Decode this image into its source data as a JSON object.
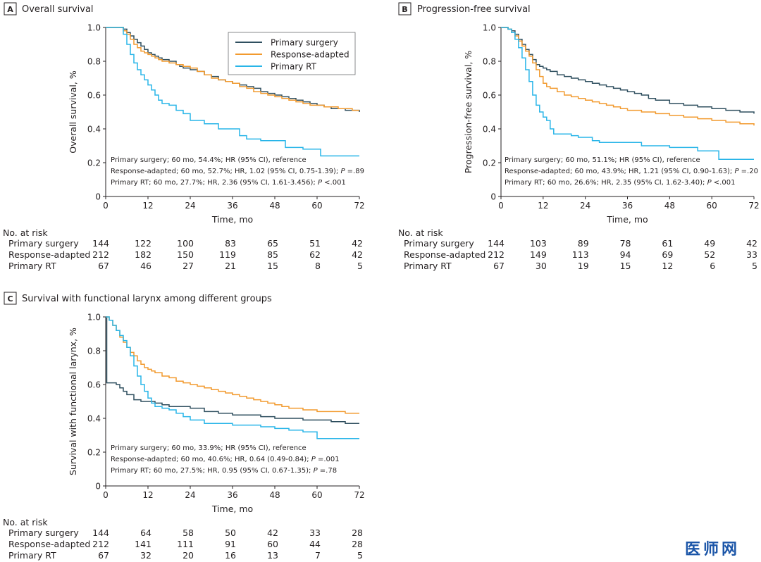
{
  "colors": {
    "primary_surgery": "#2f4f5f",
    "response_adapted": "#f29a2e",
    "primary_rt": "#29b5e8",
    "ink": "#231f20"
  },
  "watermark": "医师网",
  "chart_data": [
    {
      "panel": "A",
      "type": "line",
      "title": "Overall survival",
      "xlabel": "Time, mo",
      "ylabel": "Overall survival, %",
      "xlim": [
        0,
        72
      ],
      "ylim": [
        0,
        1.0
      ],
      "xticks": [
        "0",
        "12",
        "24",
        "36",
        "48",
        "60",
        "72"
      ],
      "yticks": [
        "0",
        "0.2",
        "0.4",
        "0.6",
        "0.8",
        "1.0"
      ],
      "legend_position": "top-right",
      "series": [
        {
          "name": "Primary surgery",
          "key": "primary_surgery",
          "x": [
            0,
            5,
            6,
            7,
            8,
            9,
            10,
            11,
            12,
            13,
            14,
            15,
            16,
            18,
            20,
            21,
            22,
            24,
            26,
            28,
            30,
            32,
            34,
            36,
            38,
            40,
            42,
            44,
            46,
            48,
            50,
            52,
            54,
            56,
            58,
            60,
            62,
            64,
            66,
            68,
            70,
            72
          ],
          "y": [
            1.0,
            0.99,
            0.97,
            0.95,
            0.93,
            0.91,
            0.89,
            0.87,
            0.85,
            0.84,
            0.83,
            0.82,
            0.81,
            0.8,
            0.78,
            0.77,
            0.76,
            0.75,
            0.74,
            0.72,
            0.71,
            0.69,
            0.68,
            0.67,
            0.66,
            0.65,
            0.64,
            0.62,
            0.61,
            0.6,
            0.59,
            0.58,
            0.57,
            0.56,
            0.55,
            0.54,
            0.53,
            0.52,
            0.52,
            0.51,
            0.51,
            0.5
          ]
        },
        {
          "name": "Response-adapted",
          "key": "response_adapted",
          "x": [
            0,
            5,
            6,
            7,
            8,
            9,
            10,
            11,
            12,
            13,
            14,
            15,
            16,
            18,
            20,
            22,
            24,
            26,
            28,
            30,
            32,
            34,
            36,
            38,
            40,
            42,
            44,
            46,
            48,
            50,
            52,
            54,
            56,
            58,
            60,
            62,
            64,
            66,
            68,
            70,
            72
          ],
          "y": [
            1.0,
            0.98,
            0.96,
            0.93,
            0.9,
            0.88,
            0.86,
            0.85,
            0.84,
            0.83,
            0.82,
            0.81,
            0.8,
            0.79,
            0.78,
            0.77,
            0.76,
            0.74,
            0.72,
            0.7,
            0.69,
            0.68,
            0.67,
            0.65,
            0.64,
            0.62,
            0.61,
            0.6,
            0.59,
            0.58,
            0.57,
            0.56,
            0.55,
            0.54,
            0.54,
            0.53,
            0.53,
            0.52,
            0.52,
            0.51,
            0.51
          ]
        },
        {
          "name": "Primary RT",
          "key": "primary_rt",
          "x": [
            0,
            5,
            6,
            7,
            8,
            9,
            10,
            11,
            12,
            13,
            14,
            15,
            16,
            18,
            20,
            22,
            24,
            28,
            32,
            36,
            38,
            40,
            44,
            46,
            51,
            56,
            61,
            72
          ],
          "y": [
            1.0,
            0.96,
            0.9,
            0.84,
            0.79,
            0.75,
            0.72,
            0.69,
            0.66,
            0.63,
            0.6,
            0.57,
            0.55,
            0.54,
            0.51,
            0.49,
            0.45,
            0.43,
            0.4,
            0.4,
            0.36,
            0.34,
            0.33,
            0.33,
            0.29,
            0.28,
            0.24,
            0.24
          ]
        }
      ],
      "annotations": [
        {
          "parts": [
            {
              "t": "Primary surgery; 60 mo, 54.4%; HR (95% CI), reference"
            }
          ]
        },
        {
          "parts": [
            {
              "t": "Response-adapted; 60 mo, 52.7%; HR, 1.02 (95% CI, 0.75-1.39); "
            },
            {
              "t": "P",
              "i": true
            },
            {
              "t": " =.89"
            }
          ]
        },
        {
          "parts": [
            {
              "t": "Primary RT; 60 mo, 27.7%; HR, 2.36 (95% CI, 1.61-3.456); "
            },
            {
              "t": "P",
              "i": true
            },
            {
              "t": " <.001"
            }
          ]
        }
      ],
      "risk_table": {
        "title": "No. at risk",
        "rows": [
          {
            "label": "Primary surgery",
            "values": [
              "144",
              "122",
              "100",
              "83",
              "65",
              "51",
              "42"
            ]
          },
          {
            "label": "Response-adapted",
            "values": [
              "212",
              "182",
              "150",
              "119",
              "85",
              "62",
              "42"
            ]
          },
          {
            "label": "Primary RT",
            "values": [
              "67",
              "46",
              "27",
              "21",
              "15",
              "8",
              "5"
            ]
          }
        ]
      }
    },
    {
      "panel": "B",
      "type": "line",
      "title": "Progression-free survival",
      "xlabel": "Time, mo",
      "ylabel": "Progression-free survival, %",
      "xlim": [
        0,
        72
      ],
      "ylim": [
        0,
        1.0
      ],
      "xticks": [
        "0",
        "12",
        "24",
        "36",
        "48",
        "60",
        "72"
      ],
      "yticks": [
        "0",
        "0.2",
        "0.4",
        "0.6",
        "0.8",
        "1.0"
      ],
      "legend_position": "none",
      "series": [
        {
          "name": "Primary surgery",
          "key": "primary_surgery",
          "x": [
            0,
            2,
            3,
            4,
            5,
            6,
            7,
            8,
            9,
            10,
            11,
            12,
            13,
            14,
            16,
            18,
            20,
            22,
            24,
            26,
            28,
            30,
            32,
            34,
            36,
            38,
            40,
            42,
            44,
            48,
            52,
            56,
            60,
            64,
            68,
            72
          ],
          "y": [
            1.0,
            0.99,
            0.98,
            0.96,
            0.93,
            0.9,
            0.87,
            0.84,
            0.81,
            0.78,
            0.77,
            0.76,
            0.75,
            0.74,
            0.72,
            0.71,
            0.7,
            0.69,
            0.68,
            0.67,
            0.66,
            0.65,
            0.64,
            0.63,
            0.62,
            0.61,
            0.6,
            0.58,
            0.57,
            0.55,
            0.54,
            0.53,
            0.52,
            0.51,
            0.5,
            0.49
          ]
        },
        {
          "name": "Response-adapted",
          "key": "response_adapted",
          "x": [
            0,
            2,
            3,
            4,
            5,
            6,
            7,
            8,
            9,
            10,
            11,
            12,
            13,
            14,
            16,
            18,
            20,
            22,
            24,
            26,
            28,
            30,
            32,
            34,
            36,
            40,
            44,
            48,
            52,
            56,
            60,
            64,
            68,
            72
          ],
          "y": [
            1.0,
            0.99,
            0.97,
            0.95,
            0.92,
            0.89,
            0.86,
            0.83,
            0.79,
            0.75,
            0.71,
            0.67,
            0.65,
            0.64,
            0.62,
            0.6,
            0.59,
            0.58,
            0.57,
            0.56,
            0.55,
            0.54,
            0.53,
            0.52,
            0.51,
            0.5,
            0.49,
            0.48,
            0.47,
            0.46,
            0.45,
            0.44,
            0.43,
            0.42
          ]
        },
        {
          "name": "Primary RT",
          "key": "primary_rt",
          "x": [
            0,
            2,
            3,
            4,
            5,
            6,
            7,
            8,
            9,
            10,
            11,
            12,
            13,
            14,
            15,
            18,
            20,
            22,
            24,
            26,
            28,
            36,
            40,
            44,
            48,
            56,
            62,
            72
          ],
          "y": [
            1.0,
            0.99,
            0.97,
            0.93,
            0.88,
            0.82,
            0.75,
            0.68,
            0.6,
            0.54,
            0.5,
            0.47,
            0.45,
            0.4,
            0.37,
            0.37,
            0.36,
            0.35,
            0.35,
            0.33,
            0.32,
            0.32,
            0.3,
            0.3,
            0.29,
            0.27,
            0.22,
            0.22
          ]
        }
      ],
      "annotations": [
        {
          "parts": [
            {
              "t": "Primary surgery; 60 mo, 51.1%; HR (95% CI), reference"
            }
          ]
        },
        {
          "parts": [
            {
              "t": "Response-adapted; 60 mo, 43.9%; HR, 1.21 (95% CI, 0.90-1.63); "
            },
            {
              "t": "P",
              "i": true
            },
            {
              "t": " =.20"
            }
          ]
        },
        {
          "parts": [
            {
              "t": "Primary RT; 60 mo, 26.6%; HR, 2.35 (95% CI, 1.62-3.40); "
            },
            {
              "t": "P",
              "i": true
            },
            {
              "t": " <.001"
            }
          ]
        }
      ],
      "risk_table": {
        "title": "No. at risk",
        "rows": [
          {
            "label": "Primary surgery",
            "values": [
              "144",
              "103",
              "89",
              "78",
              "61",
              "49",
              "42"
            ]
          },
          {
            "label": "Response-adapted",
            "values": [
              "212",
              "149",
              "113",
              "94",
              "69",
              "52",
              "33"
            ]
          },
          {
            "label": "Primary RT",
            "values": [
              "67",
              "30",
              "19",
              "15",
              "12",
              "6",
              "5"
            ]
          }
        ]
      }
    },
    {
      "panel": "C",
      "type": "line",
      "title": "Survival with functional larynx among different groups",
      "xlabel": "Time, mo",
      "ylabel": "Survival with functional larynx, %",
      "xlim": [
        0,
        72
      ],
      "ylim": [
        0,
        1.0
      ],
      "xticks": [
        "0",
        "12",
        "24",
        "36",
        "48",
        "60",
        "72"
      ],
      "yticks": [
        "0",
        "0.2",
        "0.4",
        "0.6",
        "0.8",
        "1.0"
      ],
      "legend_position": "none",
      "series": [
        {
          "name": "Primary surgery",
          "key": "primary_surgery",
          "x": [
            0,
            0.3,
            2,
            3,
            4,
            5,
            6,
            8,
            10,
            12,
            14,
            16,
            18,
            20,
            24,
            28,
            32,
            36,
            40,
            44,
            48,
            52,
            56,
            60,
            64,
            68,
            72
          ],
          "y": [
            1.0,
            0.61,
            0.61,
            0.6,
            0.58,
            0.56,
            0.54,
            0.51,
            0.5,
            0.5,
            0.49,
            0.48,
            0.47,
            0.47,
            0.46,
            0.44,
            0.43,
            0.42,
            0.42,
            0.41,
            0.4,
            0.4,
            0.39,
            0.39,
            0.38,
            0.37,
            0.37
          ]
        },
        {
          "name": "Response-adapted",
          "key": "response_adapted",
          "x": [
            0,
            1,
            2,
            3,
            4,
            5,
            6,
            7,
            8,
            9,
            10,
            11,
            12,
            13,
            14,
            16,
            18,
            20,
            22,
            24,
            26,
            28,
            30,
            32,
            34,
            36,
            38,
            40,
            42,
            44,
            46,
            48,
            50,
            52,
            56,
            60,
            64,
            68,
            72
          ],
          "y": [
            1.0,
            0.98,
            0.95,
            0.92,
            0.88,
            0.85,
            0.82,
            0.79,
            0.77,
            0.74,
            0.72,
            0.7,
            0.69,
            0.68,
            0.67,
            0.65,
            0.64,
            0.62,
            0.61,
            0.6,
            0.59,
            0.58,
            0.57,
            0.56,
            0.55,
            0.54,
            0.53,
            0.52,
            0.51,
            0.5,
            0.49,
            0.48,
            0.47,
            0.46,
            0.45,
            0.44,
            0.44,
            0.43,
            0.43
          ]
        },
        {
          "name": "Primary RT",
          "key": "primary_rt",
          "x": [
            0,
            1,
            2,
            3,
            4,
            5,
            6,
            7,
            8,
            9,
            10,
            11,
            12,
            13,
            14,
            16,
            18,
            20,
            22,
            24,
            28,
            32,
            36,
            40,
            44,
            48,
            52,
            56,
            60,
            64,
            72
          ],
          "y": [
            1.0,
            0.98,
            0.95,
            0.92,
            0.89,
            0.86,
            0.82,
            0.77,
            0.71,
            0.65,
            0.6,
            0.56,
            0.52,
            0.49,
            0.47,
            0.46,
            0.45,
            0.43,
            0.41,
            0.39,
            0.37,
            0.37,
            0.36,
            0.36,
            0.35,
            0.34,
            0.33,
            0.32,
            0.28,
            0.28,
            0.28
          ]
        }
      ],
      "annotations": [
        {
          "parts": [
            {
              "t": "Primary surgery; 60 mo, 33.9%; HR (95% CI), reference"
            }
          ]
        },
        {
          "parts": [
            {
              "t": "Response-adapted; 60 mo, 40.6%; HR, 0.64 (0.49-0.84); "
            },
            {
              "t": "P",
              "i": true
            },
            {
              "t": " =.001"
            }
          ]
        },
        {
          "parts": [
            {
              "t": "Primary RT; 60 mo, 27.5%; HR, 0.95 (95% CI, 0.67-1.35); "
            },
            {
              "t": "P",
              "i": true
            },
            {
              "t": " =.78"
            }
          ]
        }
      ],
      "risk_table": {
        "title": "No. at risk",
        "rows": [
          {
            "label": "Primary surgery",
            "values": [
              "144",
              "64",
              "58",
              "50",
              "42",
              "33",
              "28"
            ]
          },
          {
            "label": "Response-adapted",
            "values": [
              "212",
              "141",
              "111",
              "91",
              "60",
              "44",
              "28"
            ]
          },
          {
            "label": "Primary RT",
            "values": [
              "67",
              "32",
              "20",
              "16",
              "13",
              "7",
              "5"
            ]
          }
        ]
      }
    }
  ]
}
